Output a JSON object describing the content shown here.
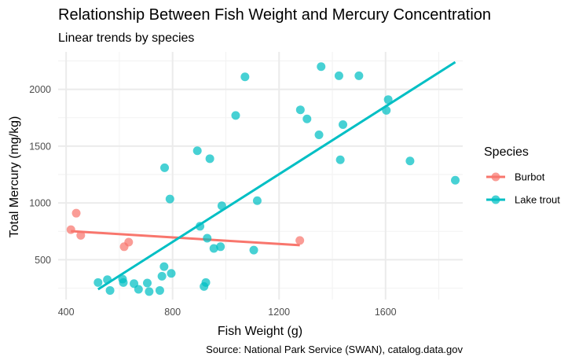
{
  "chart_data": {
    "type": "scatter",
    "title": "Relationship Between Fish Weight and Mercury Concentration",
    "subtitle": "Linear trends by species",
    "xlabel": "Fish Weight (g)",
    "ylabel": "Total Mercury (mg/kg)",
    "caption": "Source: National Park Service (SWAN), catalog.data.gov",
    "xlim": [
      370,
      1890
    ],
    "ylim": [
      150,
      2330
    ],
    "x_ticks": [
      400,
      800,
      1200,
      1600
    ],
    "y_ticks": [
      500,
      1000,
      1500,
      2000
    ],
    "grid": true,
    "legend": {
      "title": "Species",
      "position": "right"
    },
    "series": [
      {
        "name": "Burbot",
        "color": "#F8766D",
        "points": [
          {
            "x": 418,
            "y": 765
          },
          {
            "x": 438,
            "y": 910
          },
          {
            "x": 455,
            "y": 715
          },
          {
            "x": 618,
            "y": 615
          },
          {
            "x": 635,
            "y": 655
          },
          {
            "x": 1278,
            "y": 670
          }
        ],
        "trend": {
          "x": [
            418,
            1278
          ],
          "y": [
            752,
            628
          ]
        }
      },
      {
        "name": "Lake trout",
        "color": "#00BFC4",
        "points": [
          {
            "x": 520,
            "y": 300
          },
          {
            "x": 555,
            "y": 325
          },
          {
            "x": 565,
            "y": 230
          },
          {
            "x": 612,
            "y": 330
          },
          {
            "x": 615,
            "y": 300
          },
          {
            "x": 655,
            "y": 290
          },
          {
            "x": 672,
            "y": 240
          },
          {
            "x": 705,
            "y": 295
          },
          {
            "x": 712,
            "y": 220
          },
          {
            "x": 752,
            "y": 230
          },
          {
            "x": 760,
            "y": 355
          },
          {
            "x": 768,
            "y": 440
          },
          {
            "x": 795,
            "y": 380
          },
          {
            "x": 790,
            "y": 1035
          },
          {
            "x": 770,
            "y": 1310
          },
          {
            "x": 893,
            "y": 1460
          },
          {
            "x": 903,
            "y": 795
          },
          {
            "x": 918,
            "y": 265
          },
          {
            "x": 925,
            "y": 300
          },
          {
            "x": 930,
            "y": 690
          },
          {
            "x": 940,
            "y": 1390
          },
          {
            "x": 955,
            "y": 600
          },
          {
            "x": 980,
            "y": 615
          },
          {
            "x": 985,
            "y": 975
          },
          {
            "x": 1037,
            "y": 1770
          },
          {
            "x": 1072,
            "y": 2110
          },
          {
            "x": 1105,
            "y": 585
          },
          {
            "x": 1118,
            "y": 1020
          },
          {
            "x": 1280,
            "y": 1820
          },
          {
            "x": 1305,
            "y": 1740
          },
          {
            "x": 1350,
            "y": 1600
          },
          {
            "x": 1358,
            "y": 2200
          },
          {
            "x": 1425,
            "y": 2120
          },
          {
            "x": 1430,
            "y": 1380
          },
          {
            "x": 1440,
            "y": 1690
          },
          {
            "x": 1500,
            "y": 2120
          },
          {
            "x": 1603,
            "y": 1815
          },
          {
            "x": 1610,
            "y": 1910
          },
          {
            "x": 1692,
            "y": 1370
          },
          {
            "x": 1862,
            "y": 1200
          }
        ],
        "trend": {
          "x": [
            520,
            1862
          ],
          "y": [
            240,
            2240
          ]
        }
      }
    ]
  }
}
